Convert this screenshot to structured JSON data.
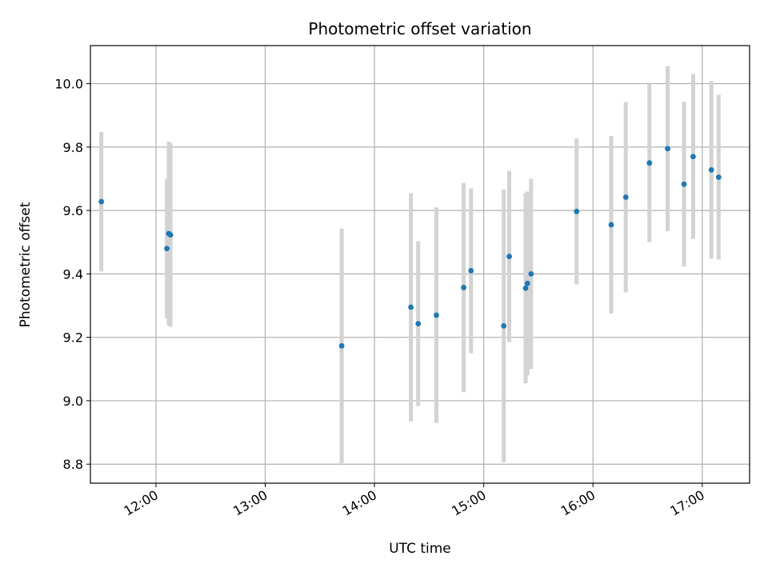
{
  "chart_data": {
    "type": "scatter",
    "title": "Photometric offset variation",
    "xlabel": "UTC time",
    "ylabel": "Photometric offset",
    "x_ticks": [
      "12:00",
      "13:00",
      "14:00",
      "15:00",
      "16:00",
      "17:00"
    ],
    "y_ticks": [
      "8.8",
      "9.0",
      "9.2",
      "9.4",
      "9.6",
      "9.8",
      "10.0"
    ],
    "xlim": [
      "11:24",
      "17:26"
    ],
    "ylim": [
      8.74,
      10.12
    ],
    "grid": true,
    "colors": {
      "point": "#1f77b4",
      "errorbar": "#d3d3d3",
      "grid": "#b0b0b0"
    },
    "points": [
      {
        "x": "11:30",
        "y": 9.628,
        "err": 0.22
      },
      {
        "x": "12:06",
        "y": 9.48,
        "err": 0.22
      },
      {
        "x": "12:07",
        "y": 9.527,
        "err": 0.29
      },
      {
        "x": "12:08",
        "y": 9.523,
        "err": 0.29
      },
      {
        "x": "13:42",
        "y": 9.173,
        "err": 0.37
      },
      {
        "x": "14:20",
        "y": 9.295,
        "err": 0.36
      },
      {
        "x": "14:24",
        "y": 9.243,
        "err": 0.26
      },
      {
        "x": "14:34",
        "y": 9.27,
        "err": 0.34
      },
      {
        "x": "14:49",
        "y": 9.357,
        "err": 0.33
      },
      {
        "x": "14:53",
        "y": 9.41,
        "err": 0.26
      },
      {
        "x": "15:11",
        "y": 9.236,
        "err": 0.43
      },
      {
        "x": "15:14",
        "y": 9.455,
        "err": 0.27
      },
      {
        "x": "15:23",
        "y": 9.355,
        "err": 0.3
      },
      {
        "x": "15:24",
        "y": 9.37,
        "err": 0.29
      },
      {
        "x": "15:26",
        "y": 9.4,
        "err": 0.3
      },
      {
        "x": "15:51",
        "y": 9.597,
        "err": 0.23
      },
      {
        "x": "16:10",
        "y": 9.555,
        "err": 0.28
      },
      {
        "x": "16:18",
        "y": 9.642,
        "err": 0.3
      },
      {
        "x": "16:31",
        "y": 9.75,
        "err": 0.25
      },
      {
        "x": "16:41",
        "y": 9.795,
        "err": 0.26
      },
      {
        "x": "16:50",
        "y": 9.683,
        "err": 0.26
      },
      {
        "x": "16:55",
        "y": 9.77,
        "err": 0.26
      },
      {
        "x": "17:05",
        "y": 9.728,
        "err": 0.28
      },
      {
        "x": "17:09",
        "y": 9.705,
        "err": 0.26
      }
    ]
  }
}
